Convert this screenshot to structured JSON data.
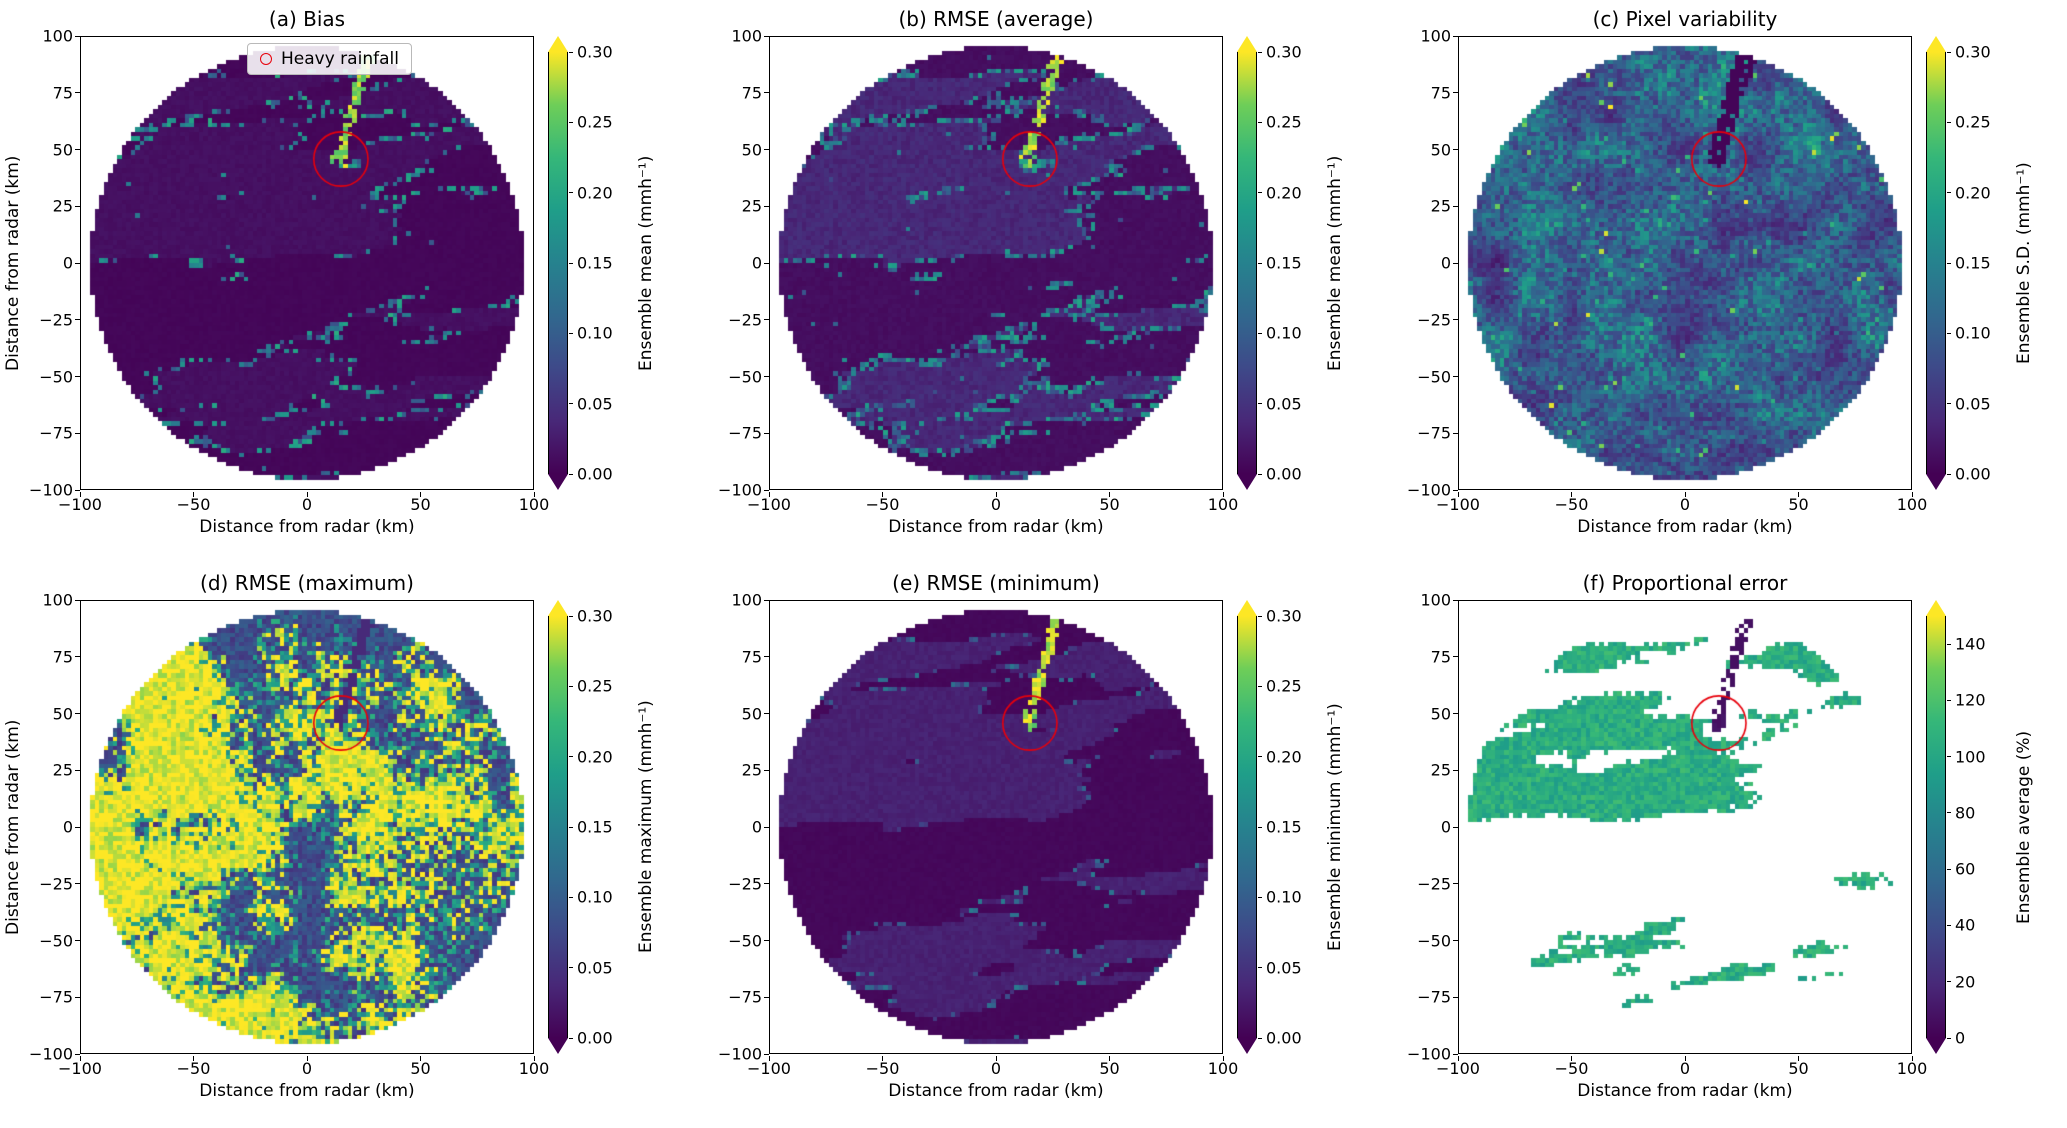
{
  "figure": {
    "background": "#ffffff"
  },
  "colors": {
    "viridis_stops": [
      "#440154",
      "#482878",
      "#3e4989",
      "#31688e",
      "#26828e",
      "#1f9e89",
      "#35b779",
      "#6ece58",
      "#fde725"
    ],
    "annotation_red": "#e8000b",
    "axis_color": "#000000"
  },
  "legend": {
    "label": "Heavy rainfall",
    "marker": "red-open-circle"
  },
  "axes": {
    "xlabel": "Distance from radar (km)",
    "ylabel": "Distance from radar (km)",
    "xlim": [
      -100,
      100
    ],
    "ylim": [
      -100,
      100
    ],
    "xticks": [
      {
        "value": -100,
        "label": "−100"
      },
      {
        "value": -50,
        "label": "−50"
      },
      {
        "value": 0,
        "label": "0"
      },
      {
        "value": 50,
        "label": "50"
      },
      {
        "value": 100,
        "label": "100"
      }
    ],
    "yticks": [
      {
        "value": 100,
        "label": "100"
      },
      {
        "value": 75,
        "label": "75"
      },
      {
        "value": 50,
        "label": "50"
      },
      {
        "value": 25,
        "label": "25"
      },
      {
        "value": 0,
        "label": "0"
      },
      {
        "value": -25,
        "label": "−25"
      },
      {
        "value": -50,
        "label": "−50"
      },
      {
        "value": -75,
        "label": "−75"
      },
      {
        "value": -100,
        "label": "−100"
      }
    ]
  },
  "chart_data": [
    {
      "panel_id": "a",
      "type": "heatmap",
      "title": "(a) Bias",
      "colorbar_label": "Ensemble mean (mmh⁻¹)",
      "vmin": 0,
      "vmax": 0.3,
      "colormap": "viridis",
      "colorbar_extend": "both",
      "colorbar_ticks": [
        {
          "value": 0.0,
          "label": "0.00"
        },
        {
          "value": 0.05,
          "label": "0.05"
        },
        {
          "value": 0.1,
          "label": "0.10"
        },
        {
          "value": 0.15,
          "label": "0.15"
        },
        {
          "value": 0.2,
          "label": "0.20"
        },
        {
          "value": 0.25,
          "label": "0.25"
        },
        {
          "value": 0.3,
          "label": "0.30"
        }
      ],
      "shape": "radar-disk",
      "disk_radius_km": 96,
      "has_legend": true,
      "annotation": {
        "label": "Heavy rainfall",
        "x_km": 15,
        "y_km": 46,
        "radius_km": 6
      },
      "field": {
        "kind": "bias",
        "seed": 11,
        "band_seed": 3
      }
    },
    {
      "panel_id": "b",
      "type": "heatmap",
      "title": "(b) RMSE (average)",
      "colorbar_label": "Ensemble mean (mmh⁻¹)",
      "vmin": 0,
      "vmax": 0.3,
      "colormap": "viridis",
      "colorbar_extend": "both",
      "colorbar_ticks": [
        {
          "value": 0.0,
          "label": "0.00"
        },
        {
          "value": 0.05,
          "label": "0.05"
        },
        {
          "value": 0.1,
          "label": "0.10"
        },
        {
          "value": 0.15,
          "label": "0.15"
        },
        {
          "value": 0.2,
          "label": "0.20"
        },
        {
          "value": 0.25,
          "label": "0.25"
        },
        {
          "value": 0.3,
          "label": "0.30"
        }
      ],
      "shape": "radar-disk",
      "disk_radius_km": 96,
      "has_legend": false,
      "annotation": {
        "label": "Heavy rainfall",
        "x_km": 15,
        "y_km": 46,
        "radius_km": 6
      },
      "field": {
        "kind": "rmse_avg",
        "seed": 23,
        "band_seed": 3
      }
    },
    {
      "panel_id": "c",
      "type": "heatmap",
      "title": "(c) Pixel variability",
      "colorbar_label": "Ensemble S.D. (mmh⁻¹)",
      "vmin": 0,
      "vmax": 0.3,
      "colormap": "viridis",
      "colorbar_extend": "both",
      "colorbar_ticks": [
        {
          "value": 0.0,
          "label": "0.00"
        },
        {
          "value": 0.05,
          "label": "0.05"
        },
        {
          "value": 0.1,
          "label": "0.10"
        },
        {
          "value": 0.15,
          "label": "0.15"
        },
        {
          "value": 0.2,
          "label": "0.20"
        },
        {
          "value": 0.25,
          "label": "0.25"
        },
        {
          "value": 0.3,
          "label": "0.30"
        }
      ],
      "shape": "radar-disk",
      "disk_radius_km": 96,
      "has_legend": false,
      "annotation": {
        "label": "Heavy rainfall",
        "x_km": 15,
        "y_km": 46,
        "radius_km": 6
      },
      "field": {
        "kind": "variability",
        "seed": 37,
        "band_seed": 3
      }
    },
    {
      "panel_id": "d",
      "type": "heatmap",
      "title": "(d) RMSE (maximum)",
      "colorbar_label": "Ensemble maximum (mmh⁻¹)",
      "vmin": 0,
      "vmax": 0.3,
      "colormap": "viridis",
      "colorbar_extend": "both",
      "colorbar_ticks": [
        {
          "value": 0.0,
          "label": "0.00"
        },
        {
          "value": 0.05,
          "label": "0.05"
        },
        {
          "value": 0.1,
          "label": "0.10"
        },
        {
          "value": 0.15,
          "label": "0.15"
        },
        {
          "value": 0.2,
          "label": "0.20"
        },
        {
          "value": 0.25,
          "label": "0.25"
        },
        {
          "value": 0.3,
          "label": "0.30"
        }
      ],
      "shape": "radar-disk",
      "disk_radius_km": 96,
      "has_legend": false,
      "annotation": {
        "label": "Heavy rainfall",
        "x_km": 15,
        "y_km": 46,
        "radius_km": 6
      },
      "field": {
        "kind": "rmse_max",
        "seed": 51,
        "band_seed": 3
      }
    },
    {
      "panel_id": "e",
      "type": "heatmap",
      "title": "(e) RMSE (minimum)",
      "colorbar_label": "Ensemble minimum (mmh⁻¹)",
      "vmin": 0,
      "vmax": 0.3,
      "colormap": "viridis",
      "colorbar_extend": "both",
      "colorbar_ticks": [
        {
          "value": 0.0,
          "label": "0.00"
        },
        {
          "value": 0.05,
          "label": "0.05"
        },
        {
          "value": 0.1,
          "label": "0.10"
        },
        {
          "value": 0.15,
          "label": "0.15"
        },
        {
          "value": 0.2,
          "label": "0.20"
        },
        {
          "value": 0.25,
          "label": "0.25"
        },
        {
          "value": 0.3,
          "label": "0.30"
        }
      ],
      "shape": "radar-disk",
      "disk_radius_km": 96,
      "has_legend": false,
      "annotation": {
        "label": "Heavy rainfall",
        "x_km": 15,
        "y_km": 46,
        "radius_km": 6
      },
      "field": {
        "kind": "rmse_min",
        "seed": 67,
        "band_seed": 3
      }
    },
    {
      "panel_id": "f",
      "type": "heatmap",
      "title": "(f) Proportional error",
      "colorbar_label": "Ensemble average (%)",
      "vmin": 0,
      "vmax": 150,
      "colormap": "viridis",
      "colorbar_extend": "both",
      "colorbar_ticks": [
        {
          "value": 0,
          "label": "0"
        },
        {
          "value": 20,
          "label": "20"
        },
        {
          "value": 40,
          "label": "40"
        },
        {
          "value": 60,
          "label": "60"
        },
        {
          "value": 80,
          "label": "80"
        },
        {
          "value": 100,
          "label": "100"
        },
        {
          "value": 120,
          "label": "120"
        },
        {
          "value": 140,
          "label": "140"
        }
      ],
      "shape": "radar-disk",
      "disk_radius_km": 96,
      "has_legend": false,
      "annotation": {
        "label": "Heavy rainfall",
        "x_km": 15,
        "y_km": 46,
        "radius_km": 6
      },
      "field": {
        "kind": "proportional",
        "seed": 83,
        "band_seed": 3
      }
    }
  ]
}
